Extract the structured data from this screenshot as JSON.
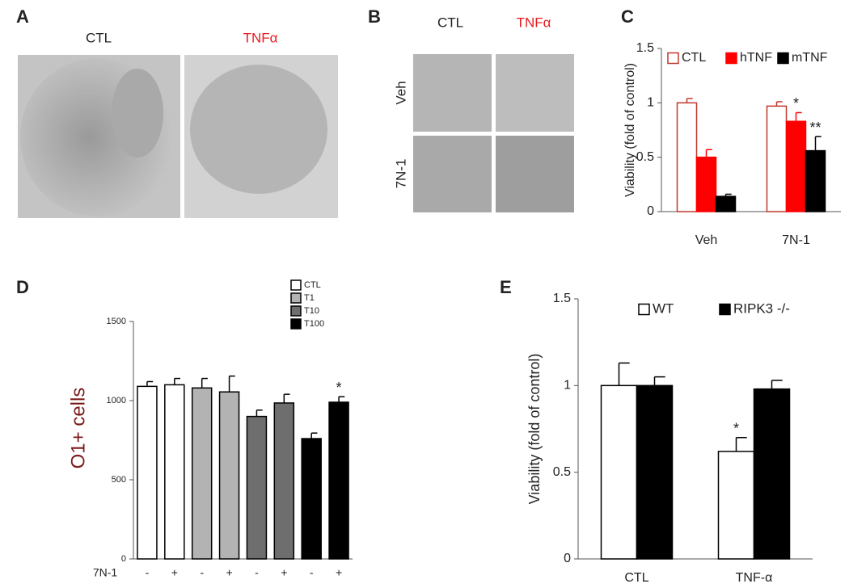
{
  "panel_a": {
    "letter": "A",
    "columns": [
      "CTL",
      "TNFα"
    ]
  },
  "panel_b": {
    "letter": "B",
    "columns": [
      "CTL",
      "TNFα"
    ],
    "rows": [
      "Veh",
      "7N-1"
    ]
  },
  "chart_data": [
    {
      "type": "bar",
      "panel": "C",
      "ylabel": "Viability (fold of control)",
      "categories": [
        "Veh",
        "7N-1"
      ],
      "ylim": [
        0,
        1.5
      ],
      "yticks": [
        0,
        0.5,
        1,
        1.5
      ],
      "legend": "top",
      "series": [
        {
          "name": "CTL",
          "color": "#ffffff",
          "edgecolor": "#c0392b",
          "values": [
            1.0,
            0.97
          ],
          "errors": [
            0.04,
            0.04
          ],
          "significance": [
            null,
            null
          ]
        },
        {
          "name": "hTNF",
          "color": "#ff0000",
          "edgecolor": "#ff0000",
          "values": [
            0.5,
            0.83
          ],
          "errors": [
            0.07,
            0.08
          ],
          "significance": [
            null,
            "*"
          ]
        },
        {
          "name": "mTNF",
          "color": "#000000",
          "edgecolor": "#000000",
          "values": [
            0.14,
            0.56
          ],
          "errors": [
            0.02,
            0.13
          ],
          "significance": [
            null,
            "**"
          ]
        }
      ]
    },
    {
      "type": "bar",
      "panel": "D",
      "ylabel": "O1+ cells",
      "xlabel": "7N-1",
      "categories": [
        "-",
        "+",
        "-",
        "+",
        "-",
        "+",
        "-",
        "+"
      ],
      "ylim": [
        0,
        1500
      ],
      "yticks": [
        0,
        500,
        1000,
        1500
      ],
      "legend": "upper right",
      "series": [
        {
          "name": "CTL",
          "color": "#ffffff",
          "edgecolor": "#000000",
          "values": [
            1090,
            1100,
            null,
            null,
            null,
            null,
            null,
            null
          ],
          "errors": [
            30,
            40,
            null,
            null,
            null,
            null,
            null,
            null
          ],
          "significance": [
            null,
            null,
            null,
            null,
            null,
            null,
            null,
            null
          ]
        },
        {
          "name": "T1",
          "color": "#b3b3b3",
          "edgecolor": "#000000",
          "values": [
            null,
            null,
            1080,
            1055,
            null,
            null,
            null,
            null
          ],
          "errors": [
            null,
            null,
            60,
            100,
            null,
            null,
            null,
            null
          ],
          "significance": [
            null,
            null,
            null,
            null,
            null,
            null,
            null,
            null
          ]
        },
        {
          "name": "T10",
          "color": "#6e6e6e",
          "edgecolor": "#000000",
          "values": [
            null,
            null,
            null,
            null,
            900,
            985,
            null,
            null
          ],
          "errors": [
            null,
            null,
            null,
            null,
            40,
            55,
            null,
            null
          ],
          "significance": [
            null,
            null,
            null,
            null,
            null,
            null,
            null,
            null
          ]
        },
        {
          "name": "T100",
          "color": "#000000",
          "edgecolor": "#000000",
          "values": [
            null,
            null,
            null,
            null,
            null,
            null,
            760,
            990
          ],
          "errors": [
            null,
            null,
            null,
            null,
            null,
            null,
            35,
            35
          ],
          "significance": [
            null,
            null,
            null,
            null,
            null,
            null,
            null,
            "*"
          ]
        }
      ]
    },
    {
      "type": "bar",
      "panel": "E",
      "ylabel": "Viability (fold of control)",
      "categories": [
        "CTL",
        "TNF-α"
      ],
      "ylim": [
        0,
        1.5
      ],
      "yticks": [
        0,
        0.5,
        1,
        1.5
      ],
      "legend": "top",
      "series": [
        {
          "name": "WT",
          "color": "#ffffff",
          "edgecolor": "#000000",
          "values": [
            1.0,
            0.62
          ],
          "errors": [
            0.13,
            0.08
          ],
          "significance": [
            null,
            "*"
          ]
        },
        {
          "name": "RIPK3 -/-",
          "color": "#000000",
          "edgecolor": "#000000",
          "values": [
            1.0,
            0.98
          ],
          "errors": [
            0.05,
            0.05
          ],
          "significance": [
            null,
            null
          ]
        }
      ]
    }
  ]
}
